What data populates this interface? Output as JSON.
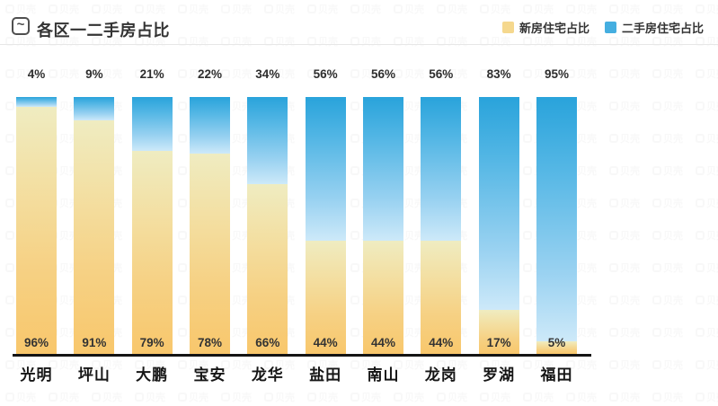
{
  "header": {
    "title": "各区一二手房占比",
    "icon": "trend-wave-icon",
    "icon_glyph": "~"
  },
  "legend": {
    "items": [
      {
        "label": "新房住宅占比",
        "color": "#F5D88E"
      },
      {
        "label": "二手房住宅占比",
        "color": "#45AEE0"
      }
    ]
  },
  "watermark": {
    "text": "贝壳"
  },
  "chart_data": {
    "type": "bar",
    "stacked": true,
    "orientation": "vertical",
    "title": "各区一二手房占比",
    "categories": [
      "光明",
      "坪山",
      "大鹏",
      "宝安",
      "龙华",
      "盐田",
      "南山",
      "龙岗",
      "罗湖",
      "福田"
    ],
    "series": [
      {
        "name": "新房住宅占比",
        "unit": "%",
        "values": [
          96,
          91,
          79,
          78,
          66,
          44,
          44,
          44,
          17,
          5
        ],
        "gradient_top": "#EFECC1",
        "gradient_bottom": "#F8C76C",
        "label_position": "inside-bottom"
      },
      {
        "name": "二手房住宅占比",
        "unit": "%",
        "values": [
          4,
          9,
          21,
          22,
          34,
          56,
          56,
          56,
          83,
          95
        ],
        "gradient_top": "#29A3DB",
        "gradient_bottom": "#CDE9F9",
        "label_position": "above-bar"
      }
    ],
    "ylim": [
      0,
      100
    ],
    "gridlines": false,
    "y_axis_shown": false,
    "baseline_color": "#141414",
    "legend_position": "top-right"
  }
}
